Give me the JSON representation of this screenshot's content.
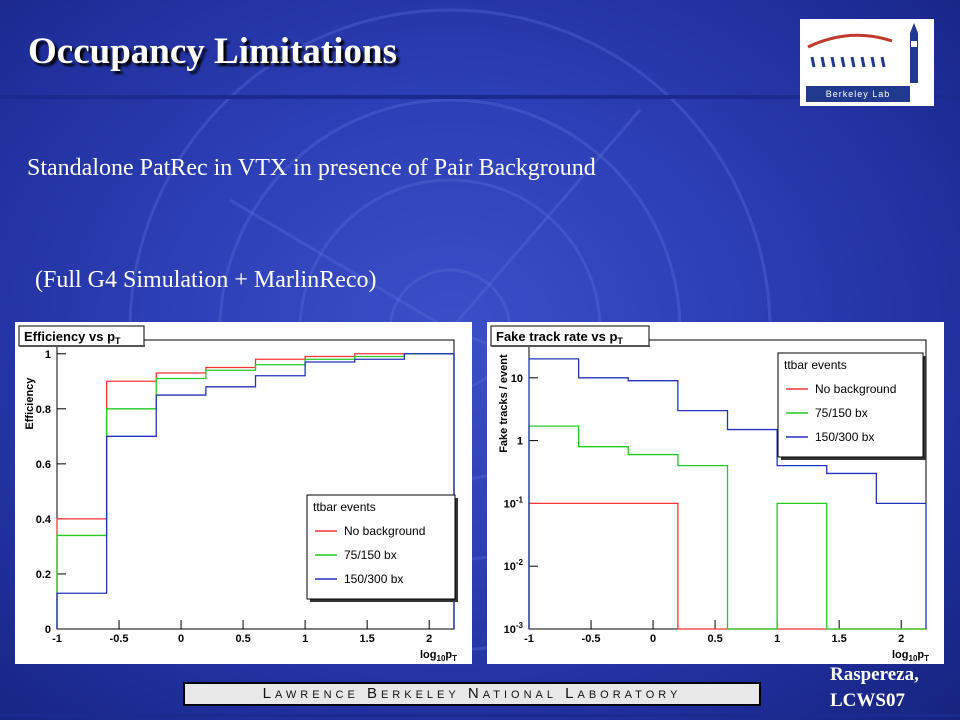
{
  "slide": {
    "title": "Occupancy Limitations",
    "subtitle": "Standalone PatRec in VTX in presence of Pair Background",
    "note": "(Full G4 Simulation + MarlinReco)",
    "author_line1": "Raspereza,",
    "author_line2": "LCWS07",
    "lab_banner": "Lawrence Berkeley National Laboratory",
    "logo_text": "Berkeley Lab",
    "colors": {
      "background": "#2d3fb6",
      "text": "#ffffff",
      "no_background": "#ff3333",
      "bx75": "#22cc22",
      "bx150": "#2233bb"
    }
  },
  "chart_data": [
    {
      "type": "line",
      "step": true,
      "title": "Efficiency vs p",
      "title_sub": "T",
      "xlabel": "log",
      "xlabel_sub": "10",
      "xlabel_main": "p",
      "xlabel_sub2": "T",
      "ylabel": "Efficiency",
      "xlim": [
        -1,
        2.2
      ],
      "ylim": [
        0,
        1.05
      ],
      "log_y": false,
      "xticks": [
        -1,
        -0.5,
        0,
        0.5,
        1,
        1.5,
        2
      ],
      "xtick_labels": [
        "-1",
        "-0.5",
        "0",
        "0.5",
        "1",
        "1.5",
        "2"
      ],
      "yticks": [
        0,
        0.2,
        0.4,
        0.6,
        0.8,
        1
      ],
      "ytick_labels": [
        "0",
        "0.2",
        "0.4",
        "0.6",
        "0.8",
        "1"
      ],
      "edges": [
        -1,
        -0.6,
        -0.2,
        0.2,
        0.6,
        1.0,
        1.4,
        1.8,
        2.2
      ],
      "legend": {
        "title": "ttbar events",
        "position": "bottom-right"
      },
      "series": [
        {
          "name": "No background",
          "color": "#ff3333",
          "values": [
            0.4,
            0.9,
            0.93,
            0.95,
            0.98,
            0.99,
            1.0,
            1.0
          ]
        },
        {
          "name": "75/150 bx",
          "color": "#22cc22",
          "values": [
            0.34,
            0.8,
            0.91,
            0.94,
            0.96,
            0.98,
            0.99,
            1.0
          ]
        },
        {
          "name": "150/300 bx",
          "color": "#2233bb",
          "values": [
            0.13,
            0.7,
            0.85,
            0.88,
            0.92,
            0.97,
            0.98,
            1.0
          ]
        }
      ]
    },
    {
      "type": "line",
      "step": true,
      "title": "Fake track rate vs p",
      "title_sub": "T",
      "xlabel": "log",
      "xlabel_sub": "10",
      "xlabel_main": "p",
      "xlabel_sub2": "T",
      "ylabel": "Fake tracks / event",
      "xlim": [
        -1,
        2.2
      ],
      "ylim": [
        0.001,
        40
      ],
      "log_y": true,
      "xticks": [
        -1,
        -0.5,
        0,
        0.5,
        1,
        1.5,
        2
      ],
      "xtick_labels": [
        "-1",
        "-0.5",
        "0",
        "0.5",
        "1",
        "1.5",
        "2"
      ],
      "yticks": [
        0.001,
        0.01,
        0.1,
        1,
        10
      ],
      "ytick_labels": [
        {
          "base": "10",
          "exp": "-3"
        },
        {
          "base": "10",
          "exp": "-2"
        },
        {
          "base": "10",
          "exp": "-1"
        },
        {
          "base": "1",
          "exp": ""
        },
        {
          "base": "10",
          "exp": ""
        }
      ],
      "edges": [
        -1,
        -0.6,
        -0.2,
        0.2,
        0.6,
        1.0,
        1.4,
        1.8,
        2.2
      ],
      "legend": {
        "title": "ttbar events",
        "position": "top-right"
      },
      "series": [
        {
          "name": "No background",
          "color": "#ff3333",
          "values": [
            0.1,
            0.1,
            0.1,
            0,
            0,
            0,
            0,
            0
          ]
        },
        {
          "name": "75/150 bx",
          "color": "#22cc22",
          "values": [
            1.7,
            0.8,
            0.6,
            0.4,
            0,
            0.1,
            0,
            0
          ]
        },
        {
          "name": "150/300 bx",
          "color": "#2233bb",
          "values": [
            20,
            10,
            9,
            3,
            1.5,
            0.4,
            0.3,
            0.1
          ]
        }
      ]
    }
  ]
}
